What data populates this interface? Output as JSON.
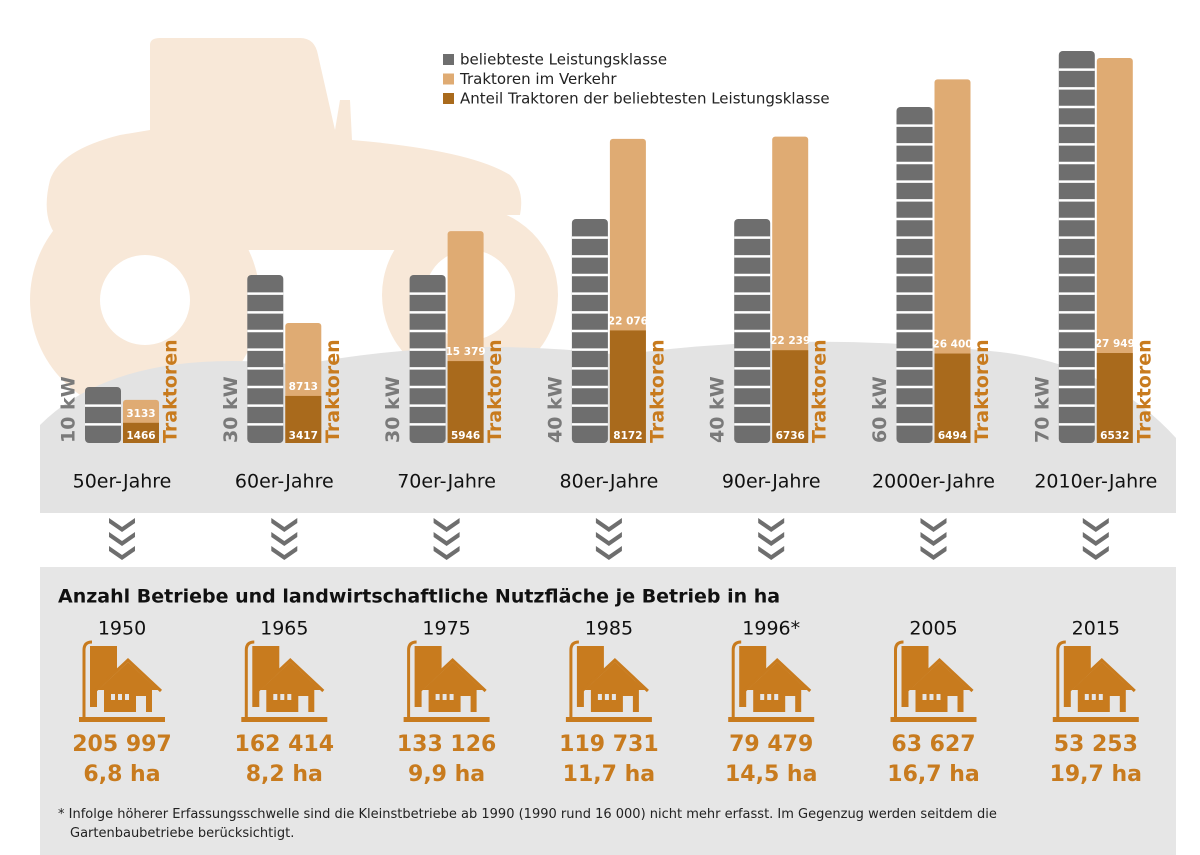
{
  "chart_data": [
    {
      "type": "bar",
      "categories": [
        "50er-Jahre",
        "60er-Jahre",
        "70er-Jahre",
        "80er-Jahre",
        "90er-Jahre",
        "2000er-Jahre",
        "2010er-Jahre"
      ],
      "series": [
        {
          "name": "beliebteste Leistungsklasse",
          "color": "#6e6e6e",
          "values": [
            10,
            30,
            30,
            40,
            40,
            60,
            70
          ],
          "value_labels": [
            "10 kW",
            "30 kW",
            "30 kW",
            "40 kW",
            "40 kW",
            "60 kW",
            "70 kW"
          ]
        },
        {
          "name": "Traktoren im Verkehr",
          "color": "#dfab73",
          "values": [
            3133,
            8713,
            15379,
            22076,
            22239,
            26400,
            27949
          ],
          "value_labels": [
            "3133",
            "8713",
            "15 379",
            "22 076",
            "22 239",
            "26 400",
            "27 949"
          ]
        },
        {
          "name": "Anteil Traktoren der beliebtesten Leistungsklasse",
          "color": "#a96a1c",
          "values": [
            1466,
            3417,
            5946,
            8172,
            6736,
            6494,
            6532
          ]
        }
      ],
      "bar_label": "Traktoren"
    },
    {
      "type": "pictogram",
      "title": "Anzahl Betriebe und landwirtschaftliche Nutzfläche je Betrieb in ha",
      "categories": [
        "1950",
        "1965",
        "1975",
        "1985",
        "1996*",
        "2005",
        "2015"
      ],
      "color": "#c87b1e",
      "series": [
        {
          "values": [
            205997,
            162414,
            133126,
            119731,
            79479,
            63627,
            53253
          ],
          "value_labels": [
            "205 997",
            "162 414",
            "133 126",
            "119 731",
            "79 479",
            "63 627",
            "53 253"
          ]
        },
        {
          "values": [
            6.8,
            8.2,
            9.9,
            11.7,
            14.5,
            16.7,
            19.7
          ],
          "value_labels": [
            "6,8 ha",
            "8,2 ha",
            "9,9 ha",
            "11,7 ha",
            "14,5 ha",
            "16,7 ha",
            "19,7 ha"
          ]
        }
      ],
      "note": "* Infolge höherer Erfassungsschwelle sind die Kleinstbetriebe ab 1990 (1990 rund 16 000) nicht mehr erfasst. Im Gegenzug werden seitdem die Gartenbaubetriebe berücksichtigt."
    }
  ]
}
